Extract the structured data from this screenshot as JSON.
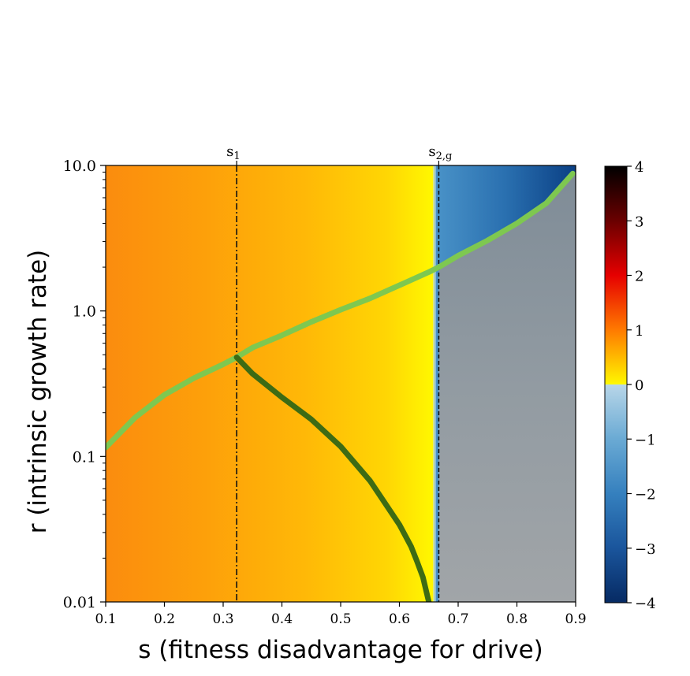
{
  "chart_data": {
    "type": "heatmap",
    "title": "",
    "xlabel": "s (fitness disadvantage for drive)",
    "ylabel": "r (intrinsic growth rate)",
    "x_range": [
      0.1,
      0.9
    ],
    "y_range": [
      0.01,
      10.0
    ],
    "y_scale": "log",
    "x_ticks": [
      "0.1",
      "0.2",
      "0.3",
      "0.4",
      "0.5",
      "0.6",
      "0.7",
      "0.8",
      "0.9"
    ],
    "y_ticks": [
      "0.01",
      "0.1",
      "1.0",
      "10.0"
    ],
    "top_markers": [
      {
        "label": "s",
        "sub": "1",
        "x": 0.323,
        "style": "dash-dot"
      },
      {
        "label": "s",
        "sub": "2,g",
        "x": 0.667,
        "style": "dashed"
      }
    ],
    "colorbar": {
      "range": [
        -4,
        4
      ],
      "ticks": [
        "4",
        "3",
        "2",
        "1",
        "0",
        "−1",
        "−2",
        "−3",
        "−4"
      ]
    },
    "heatmap_regions": [
      {
        "x_range": [
          0.1,
          0.66
        ],
        "value_trend": "increases from orange (~0.9) to yellow (~0) with s"
      },
      {
        "x_range": [
          0.66,
          0.9
        ],
        "upper": "blue, negative values down to ~-3.5",
        "lower": "grey (extinction region)"
      }
    ],
    "series": [
      {
        "color": "#7ec850",
        "points": [
          [
            0.1,
            0.115
          ],
          [
            0.15,
            0.185
          ],
          [
            0.2,
            0.265
          ],
          [
            0.25,
            0.345
          ],
          [
            0.3,
            0.43
          ],
          [
            0.323,
            0.48
          ],
          [
            0.35,
            0.56
          ],
          [
            0.4,
            0.68
          ],
          [
            0.45,
            0.84
          ],
          [
            0.5,
            1.02
          ],
          [
            0.55,
            1.22
          ],
          [
            0.6,
            1.5
          ],
          [
            0.65,
            1.85
          ],
          [
            0.667,
            2.0
          ],
          [
            0.7,
            2.4
          ],
          [
            0.75,
            3.05
          ],
          [
            0.8,
            4.0
          ],
          [
            0.85,
            5.5
          ],
          [
            0.895,
            8.8
          ]
        ]
      },
      {
        "color": "#3d6b14",
        "points": [
          [
            0.323,
            0.48
          ],
          [
            0.35,
            0.37
          ],
          [
            0.4,
            0.255
          ],
          [
            0.45,
            0.18
          ],
          [
            0.5,
            0.117
          ],
          [
            0.55,
            0.068
          ],
          [
            0.6,
            0.034
          ],
          [
            0.62,
            0.024
          ],
          [
            0.63,
            0.019
          ],
          [
            0.64,
            0.0148
          ],
          [
            0.645,
            0.0122
          ],
          [
            0.65,
            0.01
          ]
        ]
      }
    ]
  }
}
